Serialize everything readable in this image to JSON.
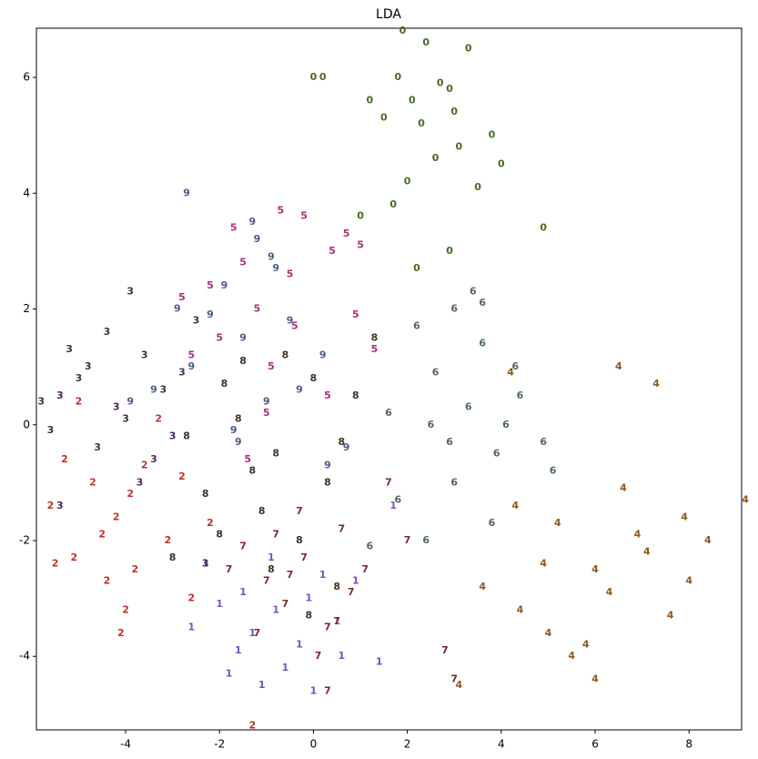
{
  "chart_data": {
    "type": "scatter",
    "title": "LDA",
    "xlim": [
      -5.9,
      9.12
    ],
    "ylim": [
      -5.27,
      6.85
    ],
    "xticks": [
      -4,
      -2,
      0,
      2,
      4,
      6,
      8
    ],
    "yticks": [
      -4,
      -2,
      0,
      2,
      4,
      6
    ],
    "series": [
      {
        "name": "0",
        "color": "#476b22",
        "x": [
          2.4,
          1.8,
          2.9,
          3.3,
          1.5,
          2.1,
          3.8,
          2.6,
          1.2,
          0.2,
          2.0,
          3.1,
          2.7,
          1.7,
          4.0,
          2.3,
          1.0,
          3.5,
          2.9,
          4.9,
          0.0,
          2.2,
          1.9,
          3.0
        ],
        "y": [
          6.6,
          6.0,
          5.8,
          6.5,
          5.3,
          5.6,
          5.0,
          4.6,
          5.6,
          6.0,
          4.2,
          4.8,
          5.9,
          3.8,
          4.5,
          5.2,
          3.6,
          4.1,
          3.0,
          3.4,
          6.0,
          2.7,
          6.8,
          5.4
        ]
      },
      {
        "name": "1",
        "color": "#7b4fbf",
        "x": [
          -0.8,
          -1.5,
          -0.3,
          0.5,
          -2.0,
          -1.1,
          0.2,
          -0.6,
          -2.6,
          -1.8,
          0.9,
          -0.1,
          -1.3,
          1.4,
          -2.3,
          0.0,
          -0.9,
          1.7,
          -1.6,
          0.6
        ],
        "y": [
          -3.2,
          -2.9,
          -3.8,
          -3.4,
          -3.1,
          -4.5,
          -2.6,
          -4.2,
          -3.5,
          -4.3,
          -2.7,
          -3.0,
          -3.6,
          -4.1,
          -2.4,
          -4.6,
          -2.3,
          -1.4,
          -3.9,
          -4.0
        ]
      },
      {
        "name": "2",
        "color": "#c0312d",
        "x": [
          -4.2,
          -5.1,
          -3.6,
          -4.7,
          -3.1,
          -5.5,
          -4.0,
          -2.6,
          -3.8,
          -5.3,
          -4.5,
          -2.2,
          -3.3,
          -5.6,
          -4.1,
          -3.9,
          -2.8,
          -5.0,
          -1.3,
          -4.4
        ],
        "y": [
          -1.6,
          -2.3,
          -0.7,
          -1.0,
          -2.0,
          -2.4,
          -3.2,
          -3.0,
          -2.5,
          -0.6,
          -1.9,
          -1.7,
          0.1,
          -1.4,
          -3.6,
          -1.2,
          -0.9,
          0.4,
          -5.2,
          -2.7
        ]
      },
      {
        "name": "3",
        "color": "#4a2a52",
        "x": [
          -4.2,
          -5.0,
          -3.6,
          -4.6,
          -3.2,
          -5.6,
          -3.9,
          -4.4,
          -2.8,
          -5.2,
          -3.4,
          -4.0,
          -5.4,
          -2.5,
          -3.7,
          -4.8,
          -3.0,
          -5.8,
          -5.4,
          -2.3
        ],
        "y": [
          0.3,
          0.8,
          1.2,
          -0.4,
          0.6,
          -0.1,
          2.3,
          1.6,
          0.9,
          1.3,
          -0.6,
          0.1,
          0.5,
          1.8,
          -1.0,
          1.0,
          -0.2,
          0.4,
          -1.4,
          -2.4
        ]
      },
      {
        "name": "4",
        "color": "#8a5a1f",
        "x": [
          6.0,
          5.2,
          7.1,
          4.4,
          6.6,
          8.4,
          3.6,
          5.8,
          7.6,
          9.2,
          4.9,
          6.3,
          7.9,
          5.5,
          3.1,
          6.9,
          4.2,
          8.0,
          6.0,
          7.3,
          5.0,
          4.3,
          6.5
        ],
        "y": [
          -2.5,
          -1.7,
          -2.2,
          -3.2,
          -1.1,
          -2.0,
          -2.8,
          -3.8,
          -3.3,
          -1.3,
          -2.4,
          -2.9,
          -1.6,
          -4.0,
          -4.5,
          -1.9,
          0.9,
          -2.7,
          -4.4,
          0.7,
          -3.6,
          -1.4,
          1.0
        ]
      },
      {
        "name": "5",
        "color": "#a8307a",
        "x": [
          -1.2,
          -2.0,
          -0.5,
          0.4,
          -2.6,
          -1.5,
          0.9,
          -0.9,
          -1.7,
          1.0,
          0.3,
          -2.2,
          -0.2,
          1.3,
          -1.0,
          -0.4,
          -2.8,
          0.7,
          -1.4,
          -0.7
        ],
        "y": [
          2.0,
          1.5,
          2.6,
          3.0,
          1.2,
          2.8,
          1.9,
          1.0,
          3.4,
          3.1,
          0.5,
          2.4,
          3.6,
          1.3,
          0.2,
          1.7,
          2.2,
          3.3,
          -0.6,
          3.7
        ]
      },
      {
        "name": "6",
        "color": "#506860",
        "x": [
          3.3,
          2.6,
          3.9,
          2.2,
          4.4,
          3.0,
          1.6,
          3.6,
          4.9,
          2.9,
          3.4,
          1.8,
          4.1,
          2.4,
          5.1,
          3.8,
          1.2,
          3.0,
          4.3,
          2.5,
          3.6
        ],
        "y": [
          0.3,
          0.9,
          -0.5,
          1.7,
          0.5,
          -1.0,
          0.2,
          1.4,
          -0.3,
          -0.3,
          2.3,
          -1.3,
          0.0,
          -2.0,
          -0.8,
          -1.7,
          -2.1,
          2.0,
          1.0,
          0.0,
          2.1
        ]
      },
      {
        "name": "7",
        "color": "#7a2a2a",
        "x": [
          -0.2,
          -1.0,
          0.6,
          -0.6,
          1.1,
          -1.5,
          0.3,
          -0.3,
          2.0,
          -1.2,
          0.8,
          -0.8,
          1.6,
          0.1,
          2.8,
          -1.8,
          0.5,
          -0.5,
          3.0,
          0.3
        ],
        "y": [
          -2.3,
          -2.7,
          -1.8,
          -3.1,
          -2.5,
          -2.1,
          -3.5,
          -1.5,
          -2.0,
          -3.6,
          -2.9,
          -1.9,
          -1.0,
          -4.0,
          -3.9,
          -2.5,
          -3.4,
          -2.6,
          -4.4,
          -4.6
        ]
      },
      {
        "name": "8",
        "color": "#3d3526",
        "x": [
          -0.8,
          -1.6,
          0.0,
          -2.3,
          -1.1,
          0.6,
          -0.3,
          -1.9,
          0.9,
          -0.6,
          -2.7,
          -1.3,
          0.3,
          -0.9,
          1.3,
          -2.0,
          -0.1,
          -1.5,
          0.5,
          -3.0
        ],
        "y": [
          -0.5,
          0.1,
          0.8,
          -1.2,
          -1.5,
          -0.3,
          -2.0,
          0.7,
          0.5,
          1.2,
          -0.2,
          -0.8,
          -1.0,
          -2.5,
          1.5,
          -1.9,
          -3.3,
          1.1,
          -2.8,
          -2.3
        ]
      },
      {
        "name": "9",
        "color": "#4a5a8a",
        "x": [
          -1.5,
          -2.2,
          -0.8,
          -1.2,
          -2.6,
          -0.3,
          -1.9,
          0.3,
          -1.0,
          -2.9,
          -3.4,
          -0.5,
          -1.6,
          -2.7,
          -1.3,
          0.7,
          -3.9,
          -0.9,
          0.2,
          -1.7
        ],
        "y": [
          1.5,
          1.9,
          2.7,
          3.2,
          1.0,
          0.6,
          2.4,
          -0.7,
          0.4,
          2.0,
          0.6,
          1.8,
          -0.3,
          4.0,
          3.5,
          -0.4,
          0.4,
          2.9,
          1.2,
          -0.1
        ]
      }
    ]
  }
}
